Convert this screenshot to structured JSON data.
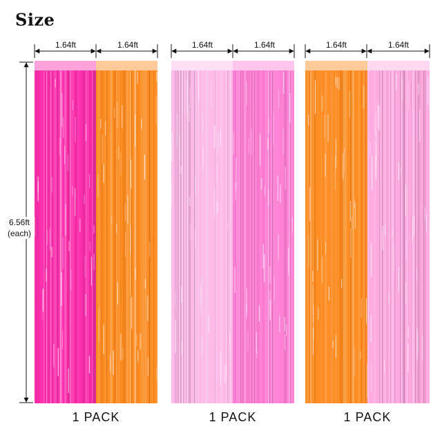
{
  "title": "Size",
  "height_label": {
    "value": "6.56ft",
    "note": "(each)"
  },
  "packs": [
    {
      "width_labels": [
        "1.64ft",
        "1.64ft"
      ],
      "pack_label": "1 PACK",
      "panels": [
        {
          "color": "#ff2fae",
          "name": "hot pink"
        },
        {
          "color": "#ff8a1e",
          "name": "orange"
        }
      ]
    },
    {
      "width_labels": [
        "1.64ft",
        "1.64ft"
      ],
      "pack_label": "1 PACK",
      "panels": [
        {
          "color": "#ffb8e8",
          "name": "light pink"
        },
        {
          "color": "#ff7ed4",
          "name": "pink"
        }
      ]
    },
    {
      "width_labels": [
        "1.64ft",
        "1.64ft"
      ],
      "pack_label": "1 PACK",
      "panels": [
        {
          "color": "#ff8a1e",
          "name": "orange"
        },
        {
          "color": "#ffa8e0",
          "name": "light pink"
        }
      ]
    }
  ]
}
